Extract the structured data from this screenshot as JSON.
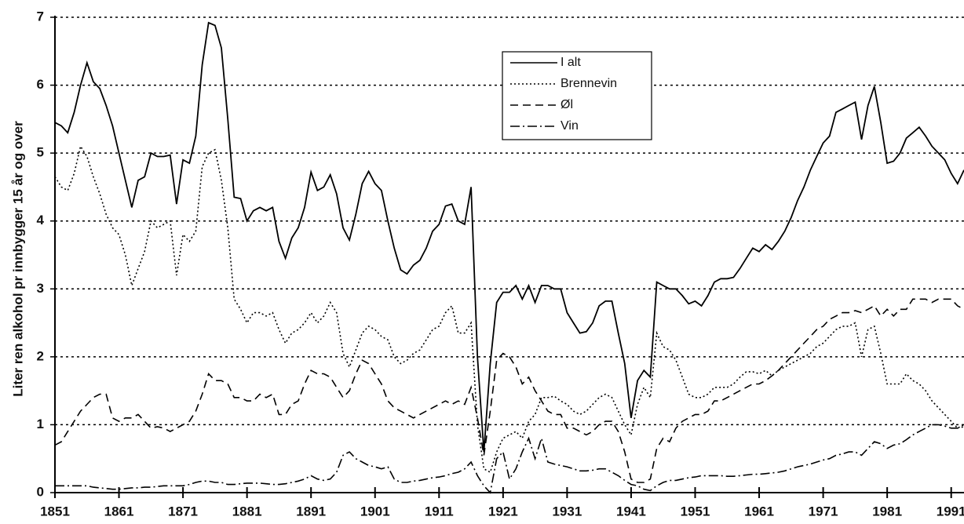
{
  "chart_data": {
    "type": "line",
    "ylabel": "Liter ren alkohol pr innbygger 15 år og over",
    "x": [
      1851,
      1852,
      1853,
      1854,
      1855,
      1856,
      1857,
      1858,
      1859,
      1860,
      1861,
      1862,
      1863,
      1864,
      1865,
      1866,
      1867,
      1868,
      1869,
      1870,
      1871,
      1872,
      1873,
      1874,
      1875,
      1876,
      1877,
      1878,
      1879,
      1880,
      1881,
      1882,
      1883,
      1884,
      1885,
      1886,
      1887,
      1888,
      1889,
      1890,
      1891,
      1892,
      1893,
      1894,
      1895,
      1896,
      1897,
      1898,
      1899,
      1900,
      1901,
      1902,
      1903,
      1904,
      1905,
      1906,
      1907,
      1908,
      1909,
      1910,
      1911,
      1912,
      1913,
      1914,
      1915,
      1916,
      1917,
      1918,
      1919,
      1920,
      1921,
      1922,
      1923,
      1924,
      1925,
      1926,
      1927,
      1928,
      1929,
      1930,
      1931,
      1932,
      1933,
      1934,
      1935,
      1936,
      1937,
      1938,
      1939,
      1940,
      1941,
      1942,
      1943,
      1944,
      1945,
      1946,
      1947,
      1948,
      1949,
      1950,
      1951,
      1952,
      1953,
      1954,
      1955,
      1956,
      1957,
      1958,
      1959,
      1960,
      1961,
      1962,
      1963,
      1964,
      1965,
      1966,
      1967,
      1968,
      1969,
      1970,
      1971,
      1972,
      1973,
      1974,
      1975,
      1976,
      1977,
      1978,
      1979,
      1980,
      1981,
      1982,
      1983,
      1984,
      1985,
      1986,
      1987,
      1988,
      1989,
      1990,
      1991,
      1992,
      1993
    ],
    "series": [
      {
        "name": "I alt",
        "color": "#000000",
        "linestyle": "solid",
        "values": [
          5.45,
          5.4,
          5.3,
          5.6,
          6.0,
          6.33,
          6.05,
          5.95,
          5.7,
          5.4,
          5.0,
          4.6,
          4.2,
          4.6,
          4.65,
          5.0,
          4.95,
          4.95,
          4.97,
          4.25,
          4.9,
          4.85,
          5.25,
          6.3,
          6.92,
          6.88,
          6.55,
          5.5,
          4.35,
          4.33,
          4.0,
          4.15,
          4.2,
          4.15,
          4.2,
          3.7,
          3.45,
          3.75,
          3.9,
          4.2,
          4.72,
          4.45,
          4.5,
          4.68,
          4.4,
          3.9,
          3.72,
          4.1,
          4.55,
          4.73,
          4.55,
          4.45,
          4.0,
          3.6,
          3.28,
          3.22,
          3.35,
          3.42,
          3.6,
          3.85,
          3.95,
          4.22,
          4.25,
          4.0,
          3.95,
          4.5,
          2.0,
          0.6,
          1.9,
          2.8,
          2.95,
          2.95,
          3.05,
          2.85,
          3.05,
          2.8,
          3.05,
          3.05,
          3.0,
          3.0,
          2.65,
          2.5,
          2.35,
          2.37,
          2.5,
          2.75,
          2.82,
          2.82,
          2.35,
          1.9,
          1.1,
          1.65,
          1.8,
          1.7,
          3.1,
          3.05,
          3.0,
          3.0,
          2.9,
          2.78,
          2.82,
          2.75,
          2.9,
          3.1,
          3.15,
          3.15,
          3.17,
          3.3,
          3.45,
          3.6,
          3.55,
          3.65,
          3.58,
          3.7,
          3.85,
          4.05,
          4.3,
          4.5,
          4.75,
          4.95,
          5.15,
          5.25,
          5.6,
          5.65,
          5.7,
          5.75,
          5.2,
          5.7,
          5.98,
          5.45,
          4.85,
          4.88,
          5.0,
          5.22,
          5.3,
          5.38,
          5.25,
          5.1,
          5.0,
          4.9,
          4.7,
          4.55,
          4.75
        ]
      },
      {
        "name": "Brennevin",
        "color": "#000000",
        "linestyle": "dotted",
        "values": [
          4.65,
          4.5,
          4.45,
          4.7,
          5.1,
          4.95,
          4.65,
          4.4,
          4.1,
          3.9,
          3.8,
          3.5,
          3.05,
          3.3,
          3.55,
          4.0,
          3.9,
          3.95,
          4.0,
          3.2,
          3.8,
          3.7,
          3.85,
          4.8,
          5.0,
          5.05,
          4.6,
          3.9,
          2.85,
          2.7,
          2.5,
          2.65,
          2.65,
          2.6,
          2.65,
          2.4,
          2.2,
          2.35,
          2.4,
          2.5,
          2.65,
          2.5,
          2.6,
          2.8,
          2.65,
          2.05,
          1.85,
          2.1,
          2.35,
          2.45,
          2.4,
          2.3,
          2.25,
          2.0,
          1.9,
          1.95,
          2.05,
          2.1,
          2.25,
          2.4,
          2.45,
          2.65,
          2.75,
          2.35,
          2.35,
          2.5,
          1.0,
          0.35,
          0.3,
          0.6,
          0.8,
          0.85,
          0.9,
          0.8,
          1.05,
          1.15,
          1.4,
          1.4,
          1.42,
          1.35,
          1.3,
          1.2,
          1.15,
          1.2,
          1.3,
          1.4,
          1.45,
          1.4,
          1.2,
          1.0,
          0.85,
          1.3,
          1.55,
          1.4,
          2.35,
          2.15,
          2.1,
          1.95,
          1.7,
          1.45,
          1.4,
          1.4,
          1.45,
          1.55,
          1.55,
          1.55,
          1.6,
          1.7,
          1.78,
          1.78,
          1.75,
          1.8,
          1.72,
          1.8,
          1.85,
          1.9,
          1.95,
          2.0,
          2.05,
          2.15,
          2.2,
          2.3,
          2.4,
          2.45,
          2.45,
          2.5,
          2.0,
          2.4,
          2.45,
          2.05,
          1.6,
          1.6,
          1.6,
          1.75,
          1.65,
          1.6,
          1.5,
          1.35,
          1.25,
          1.15,
          1.05,
          0.95,
          1.0
        ]
      },
      {
        "name": "Øl",
        "color": "#000000",
        "linestyle": "dashed",
        "values": [
          0.7,
          0.75,
          0.9,
          1.05,
          1.2,
          1.3,
          1.4,
          1.45,
          1.45,
          1.1,
          1.05,
          1.1,
          1.1,
          1.15,
          1.05,
          0.95,
          0.97,
          0.95,
          0.9,
          0.95,
          1.0,
          1.05,
          1.2,
          1.45,
          1.75,
          1.65,
          1.65,
          1.6,
          1.4,
          1.4,
          1.35,
          1.35,
          1.45,
          1.4,
          1.45,
          1.15,
          1.15,
          1.3,
          1.35,
          1.6,
          1.8,
          1.75,
          1.75,
          1.7,
          1.55,
          1.4,
          1.5,
          1.75,
          1.95,
          1.9,
          1.75,
          1.6,
          1.35,
          1.25,
          1.2,
          1.15,
          1.1,
          1.15,
          1.2,
          1.25,
          1.3,
          1.35,
          1.3,
          1.35,
          1.3,
          1.55,
          1.1,
          0.55,
          1.2,
          1.95,
          2.05,
          2.0,
          1.85,
          1.6,
          1.7,
          1.5,
          1.35,
          1.2,
          1.15,
          1.15,
          0.95,
          0.95,
          0.9,
          0.85,
          0.9,
          1.0,
          1.05,
          1.05,
          0.9,
          0.6,
          0.2,
          0.15,
          0.15,
          0.2,
          0.65,
          0.8,
          0.75,
          0.95,
          1.05,
          1.1,
          1.15,
          1.15,
          1.2,
          1.35,
          1.35,
          1.4,
          1.45,
          1.5,
          1.55,
          1.6,
          1.6,
          1.65,
          1.72,
          1.8,
          1.9,
          2.0,
          2.1,
          2.2,
          2.3,
          2.4,
          2.45,
          2.55,
          2.6,
          2.65,
          2.65,
          2.68,
          2.65,
          2.7,
          2.75,
          2.6,
          2.7,
          2.6,
          2.7,
          2.7,
          2.85,
          2.85,
          2.85,
          2.8,
          2.85,
          2.85,
          2.85,
          2.75,
          2.7
        ]
      },
      {
        "name": "Vin",
        "color": "#000000",
        "linestyle": "dashdot",
        "values": [
          0.1,
          0.1,
          0.1,
          0.1,
          0.1,
          0.1,
          0.08,
          0.07,
          0.06,
          0.05,
          0.05,
          0.06,
          0.07,
          0.07,
          0.08,
          0.08,
          0.09,
          0.1,
          0.1,
          0.1,
          0.1,
          0.12,
          0.15,
          0.17,
          0.17,
          0.15,
          0.15,
          0.12,
          0.12,
          0.13,
          0.14,
          0.14,
          0.14,
          0.13,
          0.12,
          0.12,
          0.13,
          0.15,
          0.17,
          0.2,
          0.25,
          0.2,
          0.18,
          0.2,
          0.3,
          0.55,
          0.6,
          0.5,
          0.45,
          0.4,
          0.38,
          0.35,
          0.38,
          0.2,
          0.15,
          0.15,
          0.17,
          0.18,
          0.2,
          0.22,
          0.23,
          0.25,
          0.28,
          0.3,
          0.35,
          0.45,
          0.25,
          0.1,
          0.0,
          0.5,
          0.6,
          0.2,
          0.35,
          0.6,
          0.8,
          0.5,
          0.8,
          0.45,
          0.42,
          0.4,
          0.38,
          0.35,
          0.32,
          0.32,
          0.33,
          0.35,
          0.35,
          0.3,
          0.25,
          0.18,
          0.12,
          0.1,
          0.05,
          0.03,
          0.1,
          0.15,
          0.18,
          0.18,
          0.2,
          0.22,
          0.23,
          0.25,
          0.25,
          0.25,
          0.25,
          0.24,
          0.24,
          0.25,
          0.26,
          0.27,
          0.27,
          0.28,
          0.29,
          0.3,
          0.32,
          0.35,
          0.38,
          0.4,
          0.42,
          0.45,
          0.48,
          0.5,
          0.55,
          0.57,
          0.6,
          0.6,
          0.55,
          0.65,
          0.75,
          0.72,
          0.65,
          0.7,
          0.72,
          0.78,
          0.85,
          0.9,
          0.95,
          1.0,
          1.0,
          0.98,
          0.95,
          0.95,
          0.97
        ]
      }
    ],
    "xlim": [
      1851,
      1993
    ],
    "xticks": [
      1851,
      1861,
      1871,
      1881,
      1891,
      1901,
      1911,
      1921,
      1931,
      1941,
      1951,
      1961,
      1971,
      1981,
      1991
    ],
    "ylim": [
      0,
      7
    ],
    "yticks": [
      0,
      1,
      2,
      3,
      4,
      5,
      6,
      7
    ],
    "grid": true,
    "legend": "top"
  }
}
